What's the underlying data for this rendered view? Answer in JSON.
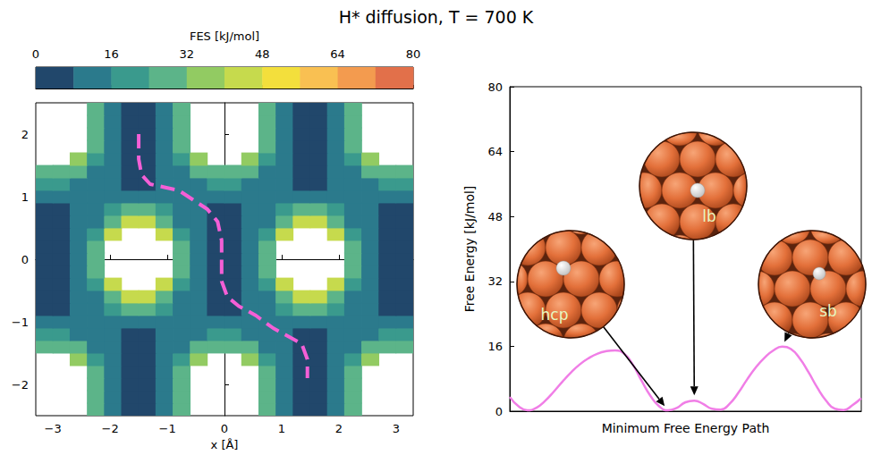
{
  "title": "H* diffusion, T = 700 K",
  "chart_data": [
    {
      "type": "heatmap",
      "x_label": "x [Å]",
      "xlim": [
        -3.3,
        3.3
      ],
      "ylim": [
        -2.5,
        2.5
      ],
      "xticks": [
        {
          "value": -3,
          "label": "−3"
        },
        {
          "value": -2,
          "label": "−2"
        },
        {
          "value": -1,
          "label": "−1"
        },
        0,
        1,
        2,
        3
      ],
      "yticks": [
        {
          "value": -2,
          "label": "−2"
        },
        {
          "value": -1,
          "label": "−1"
        },
        0,
        1,
        2
      ],
      "x": [
        -3.15,
        -2.85,
        -2.55,
        -2.25,
        -1.95,
        -1.65,
        -1.35,
        -1.05,
        -0.75,
        -0.45,
        -0.15,
        0.15,
        0.45,
        0.75,
        1.05,
        1.35,
        1.65,
        1.95,
        2.25,
        2.55,
        2.85,
        3.15
      ],
      "y": [
        -2.4,
        -2.2,
        -2.0,
        -1.8,
        -1.6,
        -1.4,
        -1.2,
        -1.0,
        -0.8,
        -0.6,
        -0.4,
        -0.2,
        0,
        0.2,
        0.4,
        0.6,
        0.8,
        1.0,
        1.2,
        1.4,
        1.6,
        1.8,
        2.0,
        2.2,
        2.4
      ],
      "z": [
        [
          null,
          null,
          null,
          28,
          12,
          4,
          4,
          12,
          28,
          null,
          null,
          null,
          null,
          28,
          12,
          4,
          4,
          12,
          28,
          null,
          null,
          null
        ],
        [
          null,
          null,
          null,
          28,
          12,
          4,
          4,
          12,
          28,
          null,
          null,
          null,
          null,
          28,
          12,
          4,
          4,
          12,
          28,
          null,
          null,
          null
        ],
        [
          null,
          null,
          null,
          28,
          12,
          4,
          4,
          12,
          28,
          null,
          null,
          null,
          null,
          28,
          12,
          4,
          4,
          12,
          28,
          null,
          null,
          null
        ],
        [
          null,
          null,
          null,
          28,
          12,
          4,
          4,
          12,
          28,
          null,
          null,
          null,
          null,
          28,
          12,
          4,
          4,
          12,
          28,
          null,
          null,
          null
        ],
        [
          null,
          null,
          36,
          20,
          12,
          4,
          4,
          12,
          20,
          36,
          null,
          null,
          36,
          20,
          12,
          4,
          4,
          12,
          20,
          36,
          null,
          null
        ],
        [
          28,
          28,
          28,
          12,
          12,
          4,
          4,
          12,
          12,
          28,
          28,
          28,
          28,
          12,
          12,
          4,
          4,
          12,
          12,
          28,
          28,
          28
        ],
        [
          20,
          20,
          12,
          12,
          12,
          4,
          4,
          12,
          12,
          12,
          20,
          20,
          12,
          12,
          12,
          4,
          4,
          12,
          12,
          12,
          20,
          20
        ],
        [
          12,
          12,
          12,
          12,
          12,
          12,
          12,
          12,
          12,
          12,
          12,
          12,
          12,
          12,
          12,
          12,
          12,
          12,
          12,
          12,
          12,
          12
        ],
        [
          4,
          4,
          12,
          12,
          20,
          28,
          28,
          20,
          12,
          12,
          4,
          4,
          12,
          12,
          20,
          28,
          28,
          20,
          12,
          12,
          4,
          4
        ],
        [
          4,
          4,
          12,
          12,
          28,
          44,
          44,
          28,
          12,
          12,
          4,
          4,
          12,
          12,
          28,
          44,
          44,
          28,
          12,
          12,
          4,
          4
        ],
        [
          4,
          4,
          12,
          20,
          44,
          null,
          null,
          44,
          20,
          12,
          4,
          4,
          12,
          20,
          44,
          null,
          null,
          44,
          20,
          12,
          4,
          4
        ],
        [
          4,
          4,
          12,
          28,
          null,
          null,
          null,
          null,
          28,
          12,
          4,
          4,
          12,
          28,
          null,
          null,
          null,
          null,
          28,
          12,
          4,
          4
        ],
        [
          4,
          4,
          12,
          28,
          null,
          null,
          null,
          null,
          28,
          12,
          4,
          4,
          12,
          28,
          null,
          null,
          null,
          null,
          28,
          12,
          4,
          4
        ],
        [
          4,
          4,
          12,
          28,
          null,
          null,
          null,
          null,
          28,
          12,
          4,
          4,
          12,
          28,
          null,
          null,
          null,
          null,
          28,
          12,
          4,
          4
        ],
        [
          4,
          4,
          12,
          20,
          44,
          null,
          null,
          44,
          20,
          12,
          4,
          4,
          12,
          20,
          44,
          null,
          null,
          44,
          20,
          12,
          4,
          4
        ],
        [
          4,
          4,
          12,
          12,
          28,
          44,
          44,
          28,
          12,
          12,
          4,
          4,
          12,
          12,
          28,
          44,
          44,
          28,
          12,
          12,
          4,
          4
        ],
        [
          4,
          4,
          12,
          12,
          20,
          28,
          28,
          20,
          12,
          12,
          4,
          4,
          12,
          12,
          20,
          28,
          28,
          20,
          12,
          12,
          4,
          4
        ],
        [
          12,
          12,
          12,
          12,
          12,
          12,
          12,
          12,
          12,
          12,
          12,
          12,
          12,
          12,
          12,
          12,
          12,
          12,
          12,
          12,
          12,
          12
        ],
        [
          20,
          20,
          12,
          12,
          12,
          4,
          4,
          12,
          12,
          12,
          20,
          20,
          12,
          12,
          12,
          4,
          4,
          12,
          12,
          12,
          20,
          20
        ],
        [
          28,
          28,
          28,
          12,
          12,
          4,
          4,
          12,
          12,
          28,
          28,
          28,
          28,
          12,
          12,
          4,
          4,
          12,
          12,
          28,
          28,
          28
        ],
        [
          null,
          null,
          36,
          20,
          12,
          4,
          4,
          12,
          20,
          36,
          null,
          null,
          36,
          20,
          12,
          4,
          4,
          12,
          20,
          36,
          null,
          null
        ],
        [
          null,
          null,
          null,
          28,
          12,
          4,
          4,
          12,
          28,
          null,
          null,
          null,
          null,
          28,
          12,
          4,
          4,
          12,
          28,
          null,
          null,
          null
        ],
        [
          null,
          null,
          null,
          28,
          12,
          4,
          4,
          12,
          28,
          null,
          null,
          null,
          null,
          28,
          12,
          4,
          4,
          12,
          28,
          null,
          null,
          null
        ],
        [
          null,
          null,
          null,
          28,
          12,
          4,
          4,
          12,
          28,
          null,
          null,
          null,
          null,
          28,
          12,
          4,
          4,
          12,
          28,
          null,
          null,
          null
        ],
        [
          null,
          null,
          null,
          28,
          12,
          4,
          4,
          12,
          28,
          null,
          null,
          null,
          null,
          28,
          12,
          4,
          4,
          12,
          28,
          null,
          null,
          null
        ]
      ],
      "colorbar": {
        "label": "FES [kJ/mol]",
        "lim": [
          0,
          80
        ],
        "ticks": [
          0,
          16,
          32,
          48,
          64,
          80
        ],
        "colors": [
          "#21476b",
          "#2b7a8c",
          "#3a9a8d",
          "#5cb489",
          "#92cb62",
          "#c6da4d",
          "#f3df3c",
          "#f9c052",
          "#f39b4f",
          "#e2704a"
        ]
      },
      "path": {
        "x": [
          -1.5,
          -1.5,
          -1.45,
          -1.3,
          -1.05,
          -0.8,
          -0.55,
          -0.3,
          -0.12,
          -0.05,
          -0.05,
          -0.05,
          0.05,
          0.25,
          0.55,
          0.85,
          1.15,
          1.35,
          1.45,
          1.45
        ],
        "y": [
          2.0,
          1.6,
          1.35,
          1.2,
          1.15,
          1.1,
          0.95,
          0.8,
          0.6,
          0.3,
          0.0,
          -0.35,
          -0.6,
          -0.75,
          -0.9,
          -1.1,
          -1.25,
          -1.35,
          -1.6,
          -1.9
        ],
        "color": "#f45fd6",
        "line_style": "dashed"
      }
    },
    {
      "type": "line",
      "x_label": "Minimum Free Energy Path",
      "y_label": "Free Energy [kJ/mol]",
      "xlim": [
        0,
        1
      ],
      "ylim": [
        0,
        80
      ],
      "yticks": [
        0,
        16,
        32,
        48,
        64,
        80
      ],
      "tick_labels": "y",
      "x": [
        0,
        0.025,
        0.05,
        0.075,
        0.1,
        0.125,
        0.15,
        0.175,
        0.2,
        0.225,
        0.25,
        0.275,
        0.3,
        0.325,
        0.35,
        0.375,
        0.4,
        0.425,
        0.45,
        0.475,
        0.5,
        0.525,
        0.55,
        0.575,
        0.6,
        0.625,
        0.65,
        0.675,
        0.7,
        0.725,
        0.75,
        0.775,
        0.8,
        0.825,
        0.85,
        0.875,
        0.9,
        0.925,
        0.95,
        0.975,
        1
      ],
      "values": [
        3.5,
        1.2,
        0.2,
        0.8,
        2.5,
        4.8,
        7.3,
        9.6,
        11.6,
        13.1,
        14.2,
        14.8,
        15.0,
        14.2,
        11.5,
        7.5,
        3.8,
        1.2,
        0.2,
        0.8,
        2.2,
        2.6,
        1.8,
        0.6,
        0.4,
        1.8,
        4.5,
        7.8,
        10.8,
        13.2,
        15.0,
        15.9,
        15.3,
        13.0,
        9.6,
        5.8,
        2.6,
        0.6,
        0.3,
        1.5,
        3.2
      ],
      "color": "#f07ee6",
      "annotations": [
        {
          "text": "hcp",
          "x": 0.45,
          "y": 0.2
        },
        {
          "text": "lb",
          "x": 0.525,
          "y": 2.6
        },
        {
          "text": "sb",
          "x": 0.775,
          "y": 15.9
        }
      ]
    }
  ]
}
